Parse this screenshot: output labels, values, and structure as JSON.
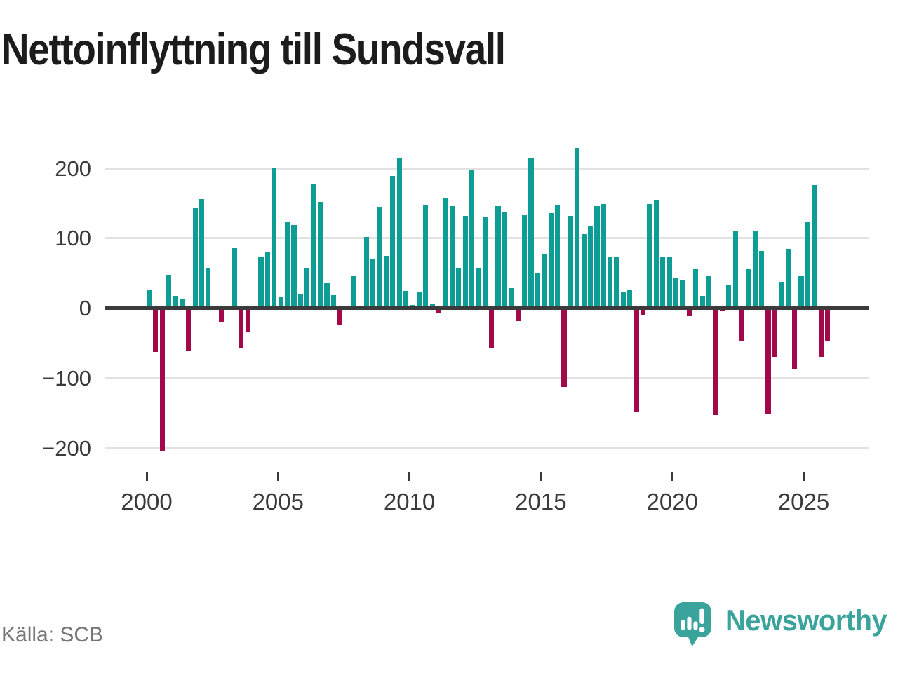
{
  "title": "Nettoinflyttning till Sundsvall",
  "source_label": "Källa: SCB",
  "brand": {
    "name": "Newsworthy"
  },
  "colors": {
    "positive_bar": "#0d9d95",
    "negative_bar": "#a2094a",
    "grid_line": "#e2e2e2",
    "zero_line": "#3b3b3b",
    "axis_text": "#3a3a3a",
    "title_text": "#1c1c1c",
    "source_text": "#767676",
    "brand_teal": "#3aa49c"
  },
  "chart_data": {
    "type": "bar",
    "title": "Nettoinflyttning till Sundsvall",
    "x_unit": "quarter",
    "frequency": "quarterly",
    "start_period": "2000Q1",
    "end_period": "2025Q4",
    "start_year": 2000,
    "x_tick_labels": [
      "2000",
      "2005",
      "2010",
      "2015",
      "2020",
      "2025"
    ],
    "y_ticks": [
      200,
      100,
      0,
      -100,
      -200
    ],
    "ylim": [
      -230,
      245
    ],
    "grid": "horizontal",
    "legend": "none",
    "values": [
      26,
      -63,
      -205,
      48,
      18,
      13,
      -61,
      143,
      156,
      57,
      0,
      -21,
      3,
      86,
      -57,
      -34,
      0,
      74,
      80,
      200,
      16,
      124,
      119,
      20,
      57,
      177,
      152,
      37,
      19,
      -25,
      0,
      47,
      0,
      102,
      71,
      145,
      75,
      189,
      214,
      25,
      5,
      24,
      147,
      7,
      -7,
      157,
      146,
      58,
      132,
      198,
      58,
      131,
      -58,
      146,
      137,
      29,
      -19,
      133,
      215,
      50,
      77,
      136,
      147,
      -113,
      132,
      229,
      106,
      118,
      146,
      149,
      73,
      73,
      23,
      26,
      -148,
      -11,
      149,
      154,
      73,
      73,
      43,
      40,
      -12,
      56,
      18,
      47,
      -153,
      -5,
      33,
      110,
      -48,
      56,
      110,
      82,
      -152,
      -70,
      38,
      85,
      -87,
      46,
      124,
      176,
      -70,
      -48
    ]
  }
}
